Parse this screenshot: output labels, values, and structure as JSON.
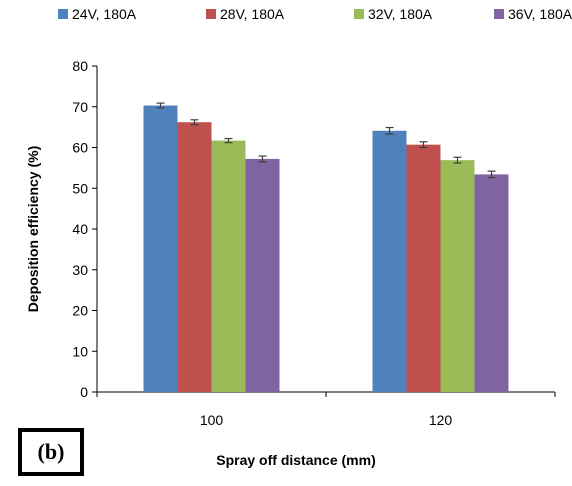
{
  "chart_data": {
    "type": "bar",
    "xlabel": "Spray off distance (mm)",
    "ylabel": "Deposition efficiency (%)",
    "ylim": [
      0,
      80
    ],
    "yticks": [
      0,
      10,
      20,
      30,
      40,
      50,
      60,
      70,
      80
    ],
    "categories": [
      "100",
      "120"
    ],
    "series": [
      {
        "name": "24V, 180A",
        "color": "#4F81BD",
        "values": [
          70.3,
          64.1
        ],
        "errors": [
          0.6,
          0.8
        ]
      },
      {
        "name": "28V, 180A",
        "color": "#C0504D",
        "values": [
          66.2,
          60.7
        ],
        "errors": [
          0.6,
          0.7
        ]
      },
      {
        "name": "32V, 180A",
        "color": "#9BBB59",
        "values": [
          61.7,
          56.9
        ],
        "errors": [
          0.5,
          0.7
        ]
      },
      {
        "name": "36V, 180A",
        "color": "#8064A2",
        "values": [
          57.2,
          53.4
        ],
        "errors": [
          0.7,
          0.8
        ]
      }
    ],
    "legend_position": "top",
    "grid": false
  },
  "panel_label": "(b)"
}
